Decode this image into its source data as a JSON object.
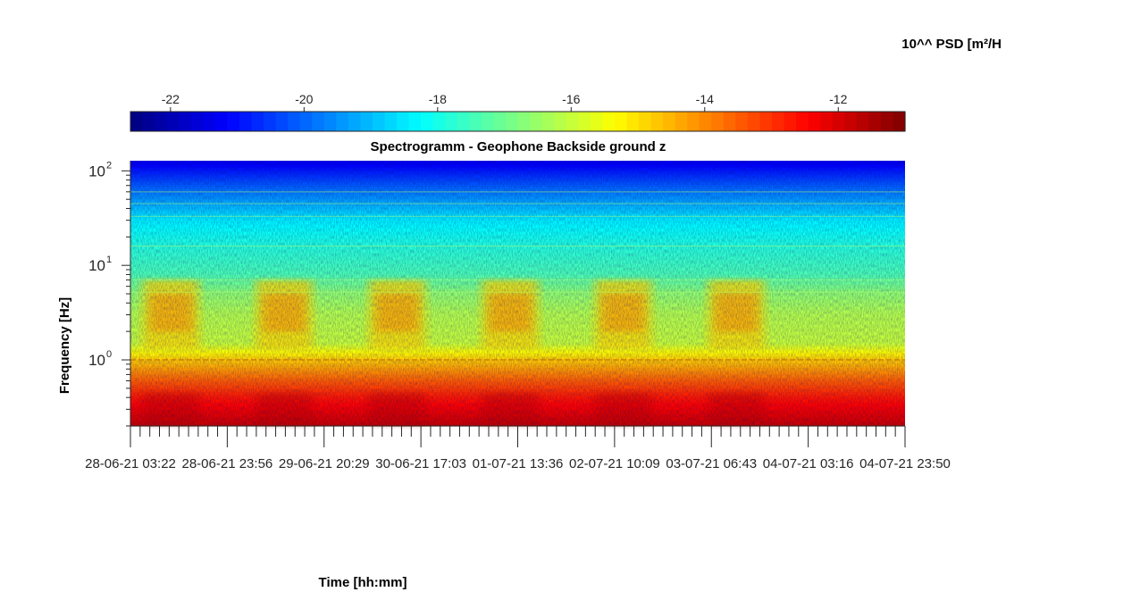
{
  "chart_data": {
    "type": "heatmap",
    "title": "Spectrogramm - Geophone Backside ground z",
    "xlabel": "Time [hh:mm]",
    "ylabel": "Frequency [Hz]",
    "colorbar_label": "10^^ PSD [m²/H",
    "colormap": "jet",
    "clim": [
      -22.6,
      -11.0
    ],
    "colorbar_ticks": [
      "-22",
      "-20",
      "-18",
      "-16",
      "-14",
      "-12"
    ],
    "colorbar_tick_values": [
      -22,
      -20,
      -18,
      -16,
      -14,
      -12
    ],
    "yscale": "log",
    "ylim": [
      0.2,
      128
    ],
    "y_ticks": [
      {
        "value": 100,
        "base": "10",
        "exp": "2"
      },
      {
        "value": 10,
        "base": "10",
        "exp": "1"
      },
      {
        "value": 1,
        "base": "10",
        "exp": "0"
      }
    ],
    "x_tick_labels": [
      "28-06-21 03:22",
      "28-06-21 23:56",
      "29-06-21 20:29",
      "30-06-21 17:03",
      "01-07-21 13:36",
      "02-07-21 10:09",
      "03-07-21 06:43",
      "04-07-21 03:16",
      "04-07-21 23:50"
    ],
    "x_range": [
      "28-06-21 03:22",
      "04-07-21 23:50"
    ],
    "psd_profile": [
      {
        "freq": 128,
        "psd": -21.4
      },
      {
        "freq": 80,
        "psd": -20.4
      },
      {
        "freq": 50,
        "psd": -19.4
      },
      {
        "freq": 30,
        "psd": -18.4
      },
      {
        "freq": 15,
        "psd": -17.8
      },
      {
        "freq": 8,
        "psd": -17.4
      },
      {
        "freq": 5,
        "psd": -16.6
      },
      {
        "freq": 3,
        "psd": -16.2
      },
      {
        "freq": 1.5,
        "psd": -16.0
      },
      {
        "freq": 1.0,
        "psd": -14.8
      },
      {
        "freq": 0.6,
        "psd": -13.5
      },
      {
        "freq": 0.4,
        "psd": -12.7
      },
      {
        "freq": 0.2,
        "psd": -11.8
      }
    ],
    "daily_activity_windows": [
      [
        "28-06-21 06:00",
        "28-06-21 18:00"
      ],
      [
        "29-06-21 06:00",
        "29-06-21 18:00"
      ],
      [
        "30-06-21 06:00",
        "30-06-21 18:00"
      ],
      [
        "01-07-21 06:00",
        "01-07-21 18:00"
      ],
      [
        "02-07-21 06:00",
        "02-07-21 18:00"
      ],
      [
        "03-07-21 06:00",
        "03-07-21 18:00"
      ]
    ],
    "grid": false
  }
}
